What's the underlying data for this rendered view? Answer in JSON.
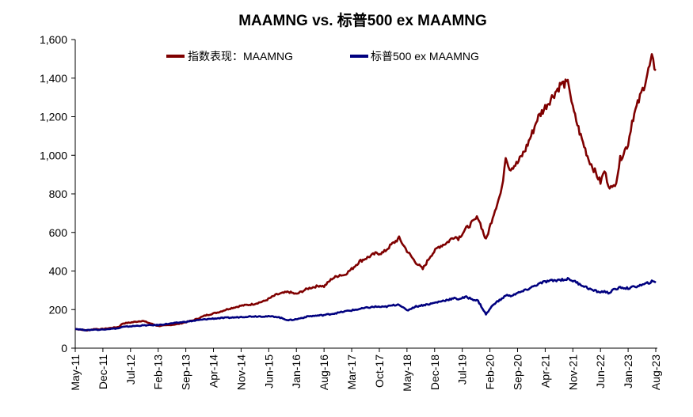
{
  "chart_data": {
    "type": "line",
    "title": "MAAMNG vs. 标普500 ex MAAMNG",
    "xlabel": "",
    "ylabel": "",
    "ylim": [
      0,
      1600
    ],
    "yticks": [
      "0",
      "200",
      "400",
      "600",
      "800",
      "1,000",
      "1,200",
      "1,400",
      "1,600"
    ],
    "ytick_values": [
      0,
      200,
      400,
      600,
      800,
      1000,
      1200,
      1400,
      1600
    ],
    "xticks": [
      "May-11",
      "Dec-11",
      "Jul-12",
      "Feb-13",
      "Sep-13",
      "Apr-14",
      "Nov-14",
      "Jun-15",
      "Jan-16",
      "Aug-16",
      "Mar-17",
      "Oct-17",
      "May-18",
      "Dec-18",
      "Jul-19",
      "Feb-20",
      "Sep-20",
      "Apr-21",
      "Nov-21",
      "Jun-22",
      "Jan-23",
      "Aug-23"
    ],
    "grid": false,
    "legend_position": "top",
    "series": [
      {
        "name": "指数表现：MAAMNG",
        "color": "#7f0000",
        "x": [
          0,
          3,
          5,
          6,
          8,
          11,
          12,
          14,
          17,
          21,
          23,
          26,
          30,
          33,
          36,
          39,
          41,
          42,
          45,
          48,
          51,
          54,
          56,
          59,
          62,
          63,
          65,
          67,
          68,
          70,
          72,
          74,
          76,
          78,
          80,
          82,
          83,
          84,
          86,
          88,
          90,
          92,
          94,
          96,
          97,
          99,
          102,
          104,
          106,
          108,
          109,
          110,
          112,
          114,
          116,
          117,
          119,
          121,
          123,
          125,
          126,
          128,
          130,
          131,
          133,
          134,
          135,
          136,
          137,
          138,
          140,
          141,
          143,
          144,
          146,
          147
        ],
        "values": [
          100,
          92,
          100,
          98,
          102,
          110,
          128,
          133,
          142,
          115,
          118,
          125,
          145,
          170,
          185,
          205,
          215,
          220,
          228,
          245,
          278,
          292,
          280,
          310,
          325,
          320,
          360,
          380,
          378,
          410,
          450,
          470,
          490,
          495,
          535,
          570,
          538,
          505,
          450,
          410,
          480,
          525,
          545,
          580,
          570,
          620,
          680,
          560,
          700,
          820,
          1000,
          930,
          960,
          1030,
          1130,
          1190,
          1250,
          1310,
          1370,
          1370,
          1240,
          1100,
          980,
          940,
          860,
          920,
          850,
          825,
          870,
          980,
          1060,
          1180,
          1300,
          1360,
          1500,
          1440
        ]
      },
      {
        "name": "标普500 ex MAAMNG",
        "color": "#00007f",
        "x": [
          0,
          3,
          5,
          6,
          8,
          11,
          12,
          14,
          17,
          21,
          23,
          26,
          30,
          33,
          36,
          39,
          41,
          42,
          45,
          48,
          51,
          54,
          56,
          59,
          62,
          63,
          65,
          67,
          68,
          70,
          72,
          74,
          76,
          78,
          80,
          82,
          83,
          84,
          86,
          88,
          90,
          92,
          94,
          96,
          97,
          99,
          102,
          104,
          106,
          108,
          109,
          110,
          112,
          114,
          116,
          117,
          119,
          121,
          123,
          125,
          126,
          128,
          130,
          131,
          133,
          134,
          135,
          136,
          137,
          138,
          140,
          141,
          143,
          144,
          146,
          147
        ],
        "values": [
          100,
          93,
          97,
          95,
          99,
          103,
          110,
          113,
          118,
          120,
          125,
          132,
          142,
          150,
          155,
          158,
          160,
          162,
          165,
          165,
          163,
          145,
          150,
          165,
          170,
          172,
          178,
          185,
          190,
          196,
          203,
          210,
          215,
          213,
          220,
          228,
          210,
          195,
          215,
          223,
          230,
          240,
          250,
          258,
          255,
          265,
          245,
          175,
          230,
          255,
          275,
          270,
          285,
          300,
          320,
          330,
          345,
          350,
          355,
          358,
          350,
          330,
          310,
          300,
          290,
          295,
          285,
          300,
          305,
          315,
          310,
          315,
          325,
          330,
          345,
          340
        ]
      }
    ]
  }
}
